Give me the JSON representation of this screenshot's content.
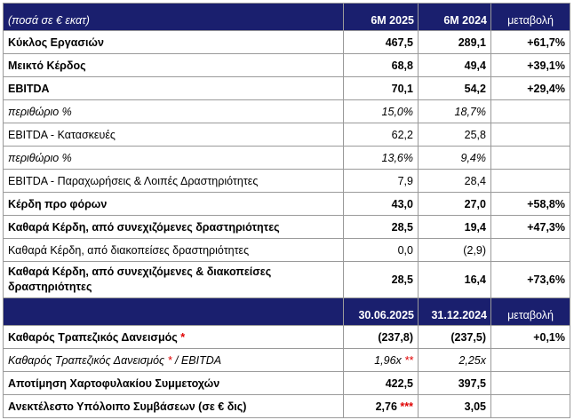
{
  "header1": {
    "label": "(ποσά σε € εκατ)",
    "col1": "6M 2025",
    "col2": "6M 2024",
    "col3": "μεταβολή"
  },
  "rows1": [
    {
      "label": "Κύκλος Εργασιών",
      "v1": "467,5",
      "v2": "289,1",
      "chg": "+61,7%"
    },
    {
      "label": "Μεικτό Κέρδος",
      "v1": "68,8",
      "v2": "49,4",
      "chg": "+39,1%"
    },
    {
      "label": "EBITDA",
      "v1": "70,1",
      "v2": "54,2",
      "chg": "+29,4%"
    },
    {
      "label": "περιθώριο %",
      "v1": "15,0%",
      "v2": "18,7%",
      "chg": ""
    },
    {
      "label": "EBITDA - Κατασκευές",
      "v1": "62,2",
      "v2": "25,8",
      "chg": ""
    },
    {
      "label": "περιθώριο %",
      "v1": "13,6%",
      "v2": "9,4%",
      "chg": ""
    },
    {
      "label": "EBITDA - Παραχωρήσεις & Λοιπές Δραστηριότητες",
      "v1": "7,9",
      "v2": "28,4",
      "chg": ""
    },
    {
      "label": "Κέρδη προ φόρων",
      "v1": "43,0",
      "v2": "27,0",
      "chg": "+58,8%"
    },
    {
      "label": "Καθαρά Κέρδη, από συνεχιζόμενες δραστηριότητες",
      "v1": "28,5",
      "v2": "19,4",
      "chg": "+47,3%"
    },
    {
      "label": "Καθαρά Κέρδη, από διακοπείσες δραστηριότητες",
      "v1": "0,0",
      "v2": "(2,9)",
      "chg": ""
    },
    {
      "label": "Καθαρά Κέρδη, από συνεχιζόμενες & διακοπείσες δραστηριότητες",
      "v1": "28,5",
      "v2": "16,4",
      "chg": "+73,6%"
    }
  ],
  "header2": {
    "label": "",
    "col1": "30.06.2025",
    "col2": "31.12.2024",
    "col3": "μεταβολή"
  },
  "rows2": [
    {
      "label": "Καθαρός Τραπεζικός Δανεισμός",
      "label_star": "*",
      "label_suffix": "",
      "v1": "(237,8)",
      "v1_star": "",
      "v2": "(237,5)",
      "chg": "+0,1%"
    },
    {
      "label": "Καθαρός Τραπεζικός Δανεισμός",
      "label_star": "*",
      "label_suffix": " / EBITDA",
      "v1": "1,96x",
      "v1_star": "**",
      "v2": "2,25x",
      "chg": ""
    },
    {
      "label": "Αποτίμηση Χαρτοφυλακίου Συμμετοχών",
      "label_star": "",
      "label_suffix": "",
      "v1": "422,5",
      "v1_star": "",
      "v2": "397,5",
      "chg": ""
    },
    {
      "label": "Ανεκτέλεστο Υπόλοιπο Συμβάσεων (σε € δις)",
      "label_star": "",
      "label_suffix": "",
      "v1": "2,76",
      "v1_star": "***",
      "v2": "3,05",
      "chg": ""
    }
  ],
  "colors": {
    "header_bg": "#1a1f6e",
    "header_text": "#ffffff",
    "asterisk": "#e00000",
    "grid": "#9a9a9a"
  }
}
